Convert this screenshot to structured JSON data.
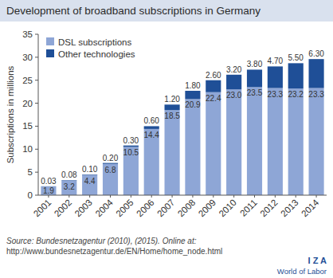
{
  "chart_data": {
    "type": "bar",
    "title": "Development of broadband subscriptions in Germany",
    "y_label": "Subscriptions in millions",
    "categories": [
      "2001",
      "2002",
      "2003",
      "2004",
      "2005",
      "2006",
      "2007",
      "2008",
      "2009",
      "2010",
      "2011",
      "2012",
      "2013",
      "2014"
    ],
    "series": [
      {
        "name": "DSL subscriptions",
        "color": "#8ea6d6",
        "values": [
          1.9,
          3.2,
          4.4,
          6.8,
          10.5,
          14.4,
          18.5,
          20.9,
          22.4,
          23.0,
          23.5,
          23.3,
          23.2,
          23.3
        ],
        "value_labels": [
          "1.9",
          "3.2",
          "4.4",
          "6.8",
          "10.5",
          "14.4",
          "18.5",
          "20.9",
          "22.4",
          "23.0",
          "23.5",
          "23.3",
          "23.2",
          "23.3"
        ]
      },
      {
        "name": "Other technologies",
        "color": "#1f4f97",
        "values": [
          0.03,
          0.08,
          0.1,
          0.2,
          0.3,
          0.6,
          1.2,
          1.8,
          2.6,
          3.2,
          3.8,
          4.7,
          5.5,
          6.3
        ],
        "value_labels": [
          "0.03",
          "0.08",
          "0.10",
          "0.20",
          "0.30",
          "0.60",
          "1.20",
          "1.80",
          "2.60",
          "3.20",
          "3.80",
          "4.70",
          "5.50",
          "6.30"
        ]
      }
    ],
    "stacked": true,
    "data_labels": true,
    "legend": "upper left",
    "grid": false,
    "ylim": [
      0,
      35
    ],
    "yticks": [
      0,
      5,
      10,
      15,
      20,
      25,
      30,
      35
    ],
    "source": [
      "Source: Bundesnetzagentur (2010), (2015). Online at:",
      "http://www.bundesnetzagentur.de/EN/Home/home_node.html"
    ],
    "branding": {
      "logo": "I Z A",
      "tagline": "World of Labor"
    }
  }
}
